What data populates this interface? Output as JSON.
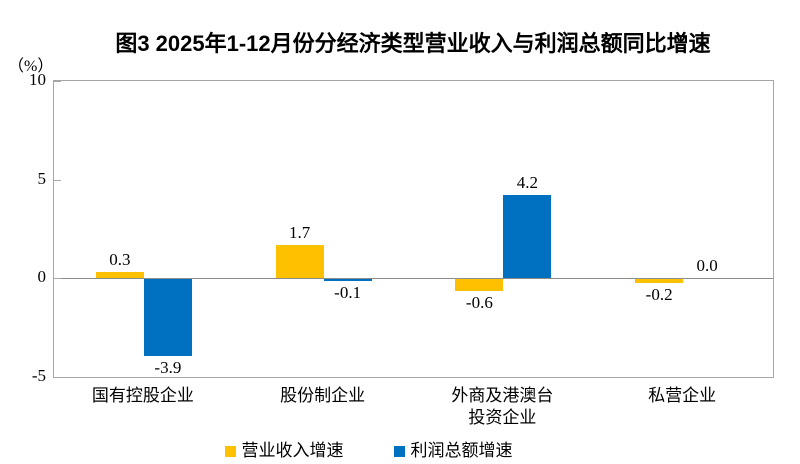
{
  "figure": {
    "title": "图3 2025年1-12月份分经济类型营业收入与利润总额同比增速",
    "y_axis_unit": "（%）"
  },
  "chart_data": {
    "type": "bar",
    "title": "图3 2025年1-12月份分经济类型营业收入与利润总额同比增速",
    "ylabel": "（%）",
    "ylim": [
      -5,
      10
    ],
    "yticks": [
      10,
      5,
      0,
      -5
    ],
    "grid": false,
    "legend_position": "bottom",
    "data_labels": true,
    "data_label_decimals": 1,
    "categories": [
      "国有控股企业",
      "股份制企业",
      "外商及港澳台\n投资企业",
      "私营企业"
    ],
    "series": [
      {
        "name": "营业收入增速",
        "color": "#FFC000",
        "values": [
          0.3,
          1.7,
          -0.6,
          -0.2
        ]
      },
      {
        "name": "利润总额增速",
        "color": "#0070C0",
        "values": [
          -3.9,
          -0.1,
          4.2,
          0.0
        ]
      }
    ]
  }
}
